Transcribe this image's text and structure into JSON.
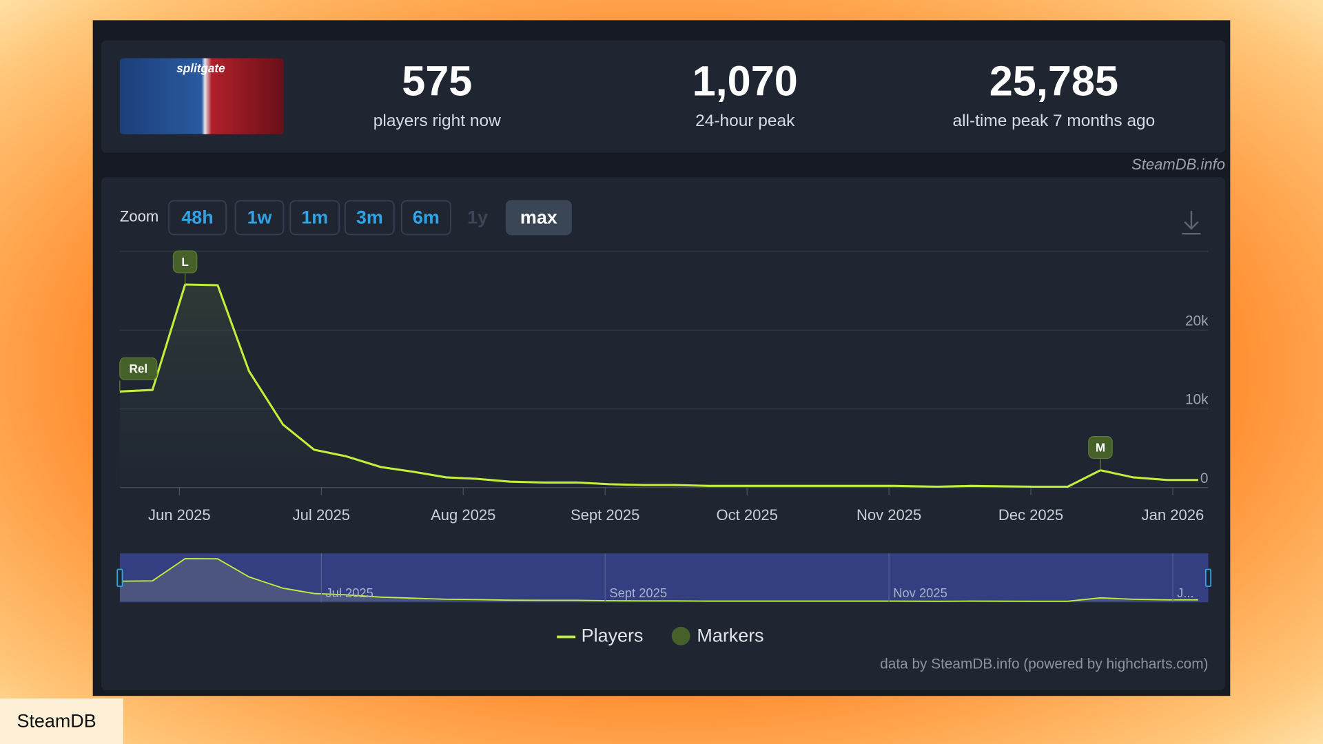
{
  "header": {
    "game_logo_text": "splitgate",
    "stats": [
      {
        "value": "575",
        "label": "players right now"
      },
      {
        "value": "1,070",
        "label": "24-hour peak"
      },
      {
        "value": "25,785",
        "label": "all-time peak 7 months ago"
      }
    ],
    "source": "SteamDB.info"
  },
  "zoom": {
    "label": "Zoom",
    "buttons": [
      "48h",
      "1w",
      "1m",
      "3m",
      "6m",
      "1y",
      "max"
    ]
  },
  "chart_data": {
    "type": "line",
    "x": [
      5.58,
      5.81,
      6.04,
      6.27,
      6.49,
      6.73,
      6.95,
      7.17,
      7.42,
      7.65,
      7.88,
      8.1,
      8.33,
      8.57,
      8.8,
      9.03,
      9.27,
      9.49,
      9.73,
      9.97,
      10.45,
      11.04,
      11.34,
      11.58,
      12.02,
      12.26,
      12.49,
      12.72,
      12.96,
      13.18
    ],
    "series": [
      {
        "name": "Players",
        "color": "#c2f03a",
        "values": [
          12200,
          12400,
          25785,
          25700,
          14800,
          8000,
          4800,
          4000,
          2600,
          2000,
          1300,
          1100,
          750,
          640,
          640,
          430,
          320,
          320,
          210,
          210,
          210,
          210,
          110,
          210,
          110,
          110,
          2200,
          1300,
          960,
          960
        ]
      }
    ],
    "xlim": [
      5.58,
      13.25
    ],
    "xticks": [
      {
        "value": 6,
        "label": "Jun 2025"
      },
      {
        "value": 7,
        "label": "Jul 2025"
      },
      {
        "value": 8,
        "label": "Aug 2025"
      },
      {
        "value": 9,
        "label": "Sept 2025"
      },
      {
        "value": 10,
        "label": "Oct 2025"
      },
      {
        "value": 11,
        "label": "Nov 2025"
      },
      {
        "value": 12,
        "label": "Dec 2025"
      },
      {
        "value": 13,
        "label": "Jan 2026"
      }
    ],
    "ylim": [
      0,
      30000
    ],
    "yticks": [
      0,
      {
        "value": 10000,
        "label": "10k"
      },
      {
        "value": 20000,
        "label": "20k"
      }
    ],
    "grid": true,
    "markers": [
      {
        "label": "Rel",
        "x": 5.58
      },
      {
        "label": "L",
        "x": 6.04
      },
      {
        "label": "M",
        "x": 12.49
      }
    ],
    "marker_legend": "Markers",
    "marker_color": "#46602a",
    "navigator_labels": [
      "Jul 2025",
      "Sept 2025",
      "Nov 2025",
      "J..."
    ],
    "credit": "data by SteamDB.info (powered by highcharts.com)"
  },
  "footer": {
    "brand": "SteamDB"
  }
}
